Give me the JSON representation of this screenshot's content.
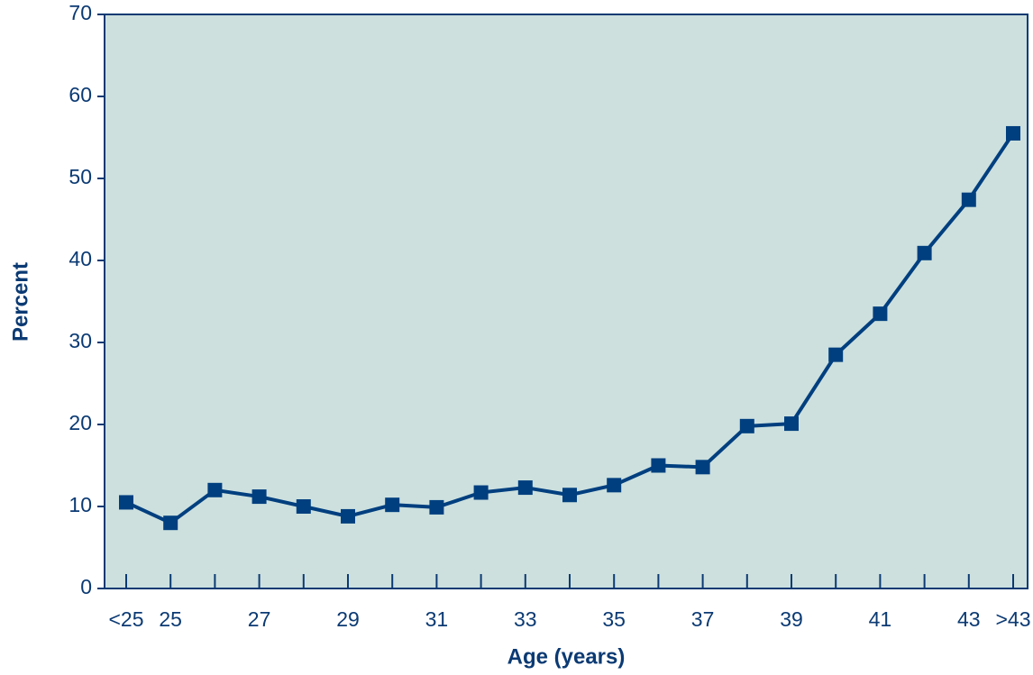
{
  "chart_data": {
    "type": "line",
    "xlabel": "Age (years)",
    "ylabel": "Percent",
    "categories": [
      "<25",
      "25",
      null,
      "27",
      null,
      "29",
      null,
      "31",
      null,
      "33",
      null,
      "35",
      null,
      "37",
      null,
      "39",
      null,
      "41",
      null,
      "43",
      ">43"
    ],
    "series": [
      {
        "color": "#003f7f",
        "values": [
          10.5,
          8.0,
          12.0,
          11.2,
          10.0,
          8.8,
          10.2,
          9.9,
          11.7,
          12.3,
          11.4,
          12.6,
          15.0,
          14.8,
          19.8,
          20.1,
          28.5,
          33.5,
          40.9,
          47.4,
          55.5
        ]
      }
    ],
    "ylim": [
      0,
      70
    ],
    "yticks": [
      0,
      10,
      20,
      30,
      40,
      50,
      60,
      70
    ],
    "background": "#cde0de"
  }
}
